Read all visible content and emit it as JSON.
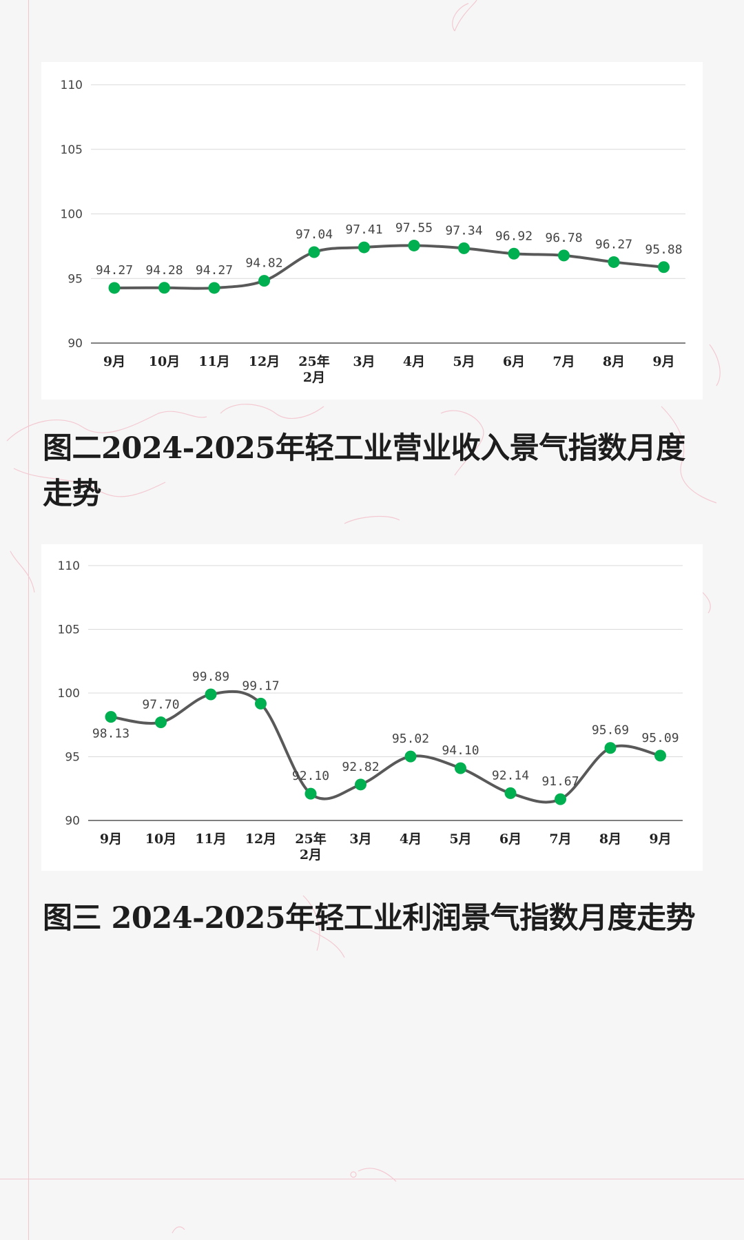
{
  "colors": {
    "line": "#595959",
    "marker": "#00b050",
    "grid": "#d9d9d9",
    "axis": "#333333"
  },
  "chart_data": [
    {
      "type": "line",
      "title": "",
      "categories": [
        "9月",
        "10月",
        "11月",
        "12月",
        "25年\n2月",
        "3月",
        "4月",
        "5月",
        "6月",
        "7月",
        "8月",
        "9月"
      ],
      "values": [
        94.27,
        94.28,
        94.27,
        94.82,
        97.04,
        97.41,
        97.55,
        97.34,
        96.92,
        96.78,
        96.27,
        95.88
      ],
      "ylim": [
        90,
        110
      ],
      "yticks": [
        90,
        95,
        100,
        105,
        110
      ],
      "grid": true,
      "xlabel": "",
      "ylabel": ""
    },
    {
      "type": "line",
      "title": "",
      "categories": [
        "9月",
        "10月",
        "11月",
        "12月",
        "25年\n2月",
        "3月",
        "4月",
        "5月",
        "6月",
        "7月",
        "8月",
        "9月"
      ],
      "values": [
        98.13,
        97.7,
        99.89,
        99.17,
        92.1,
        92.82,
        95.02,
        94.1,
        92.14,
        91.67,
        95.69,
        95.09
      ],
      "ylim": [
        90,
        110
      ],
      "yticks": [
        90,
        95,
        100,
        105,
        110
      ],
      "grid": true,
      "xlabel": "",
      "ylabel": ""
    }
  ],
  "captions": {
    "chart1": "图二2024-2025年轻工业营业收入景气指数月度走势",
    "chart2": "图三 2024-2025年轻工业利润景气指数月度走势"
  }
}
